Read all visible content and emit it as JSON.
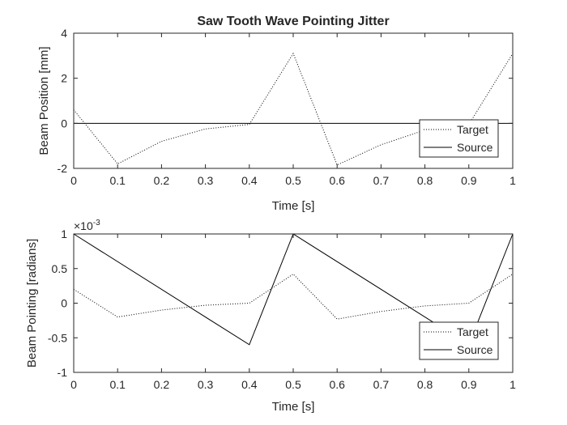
{
  "chart_data": [
    {
      "type": "line",
      "title": "Saw Tooth Wave Pointing Jitter",
      "xlabel": "Time [s]",
      "ylabel": "Beam Position [mm]",
      "xlim": [
        0,
        1
      ],
      "ylim": [
        -2,
        4
      ],
      "xticks": [
        0,
        0.1,
        0.2,
        0.3,
        0.4,
        0.5,
        0.6,
        0.7,
        0.8,
        0.9,
        1
      ],
      "xtick_labels": [
        "0",
        "0.1",
        "0.2",
        "0.3",
        "0.4",
        "0.5",
        "0.6",
        "0.7",
        "0.8",
        "0.9",
        "1"
      ],
      "yticks": [
        -2,
        0,
        2,
        4
      ],
      "ytick_labels": [
        "-2",
        "0",
        "2",
        "4"
      ],
      "legend_position": "bottom-right",
      "series": [
        {
          "name": "Target",
          "style": "dotted",
          "color": "#000000",
          "x": [
            0,
            0.1,
            0.2,
            0.3,
            0.4,
            0.5,
            0.6,
            0.7,
            0.8,
            0.9,
            1.0
          ],
          "y": [
            0.6,
            -1.8,
            -0.8,
            -0.25,
            -0.05,
            3.1,
            -1.85,
            -0.95,
            -0.3,
            -0.05,
            3.1
          ]
        },
        {
          "name": "Source",
          "style": "solid",
          "color": "#000000",
          "x": [
            0,
            1
          ],
          "y": [
            0,
            0
          ]
        }
      ]
    },
    {
      "type": "line",
      "title": "",
      "xlabel": "Time [s]",
      "ylabel": "Beam Pointing [radians]",
      "exponent_label": "×10",
      "exponent_power": "-3",
      "xlim": [
        0,
        1
      ],
      "ylim": [
        -1,
        1
      ],
      "xticks": [
        0,
        0.1,
        0.2,
        0.3,
        0.4,
        0.5,
        0.6,
        0.7,
        0.8,
        0.9,
        1
      ],
      "xtick_labels": [
        "0",
        "0.1",
        "0.2",
        "0.3",
        "0.4",
        "0.5",
        "0.6",
        "0.7",
        "0.8",
        "0.9",
        "1"
      ],
      "yticks": [
        -1,
        -0.5,
        0,
        0.5,
        1
      ],
      "ytick_labels": [
        "-1",
        "-0.5",
        "0",
        "0.5",
        "1"
      ],
      "legend_position": "bottom-right",
      "series": [
        {
          "name": "Target",
          "style": "dotted",
          "color": "#000000",
          "x": [
            0,
            0.1,
            0.2,
            0.3,
            0.4,
            0.5,
            0.6,
            0.7,
            0.8,
            0.9,
            1.0
          ],
          "y": [
            0.2,
            -0.2,
            -0.1,
            -0.03,
            0,
            0.42,
            -0.23,
            -0.12,
            -0.04,
            0,
            0.42
          ]
        },
        {
          "name": "Source",
          "style": "solid",
          "color": "#000000",
          "x": [
            0,
            0.4,
            0.5,
            0.9,
            1.0
          ],
          "y": [
            1.0,
            -0.6,
            1.0,
            -0.6,
            1.0
          ]
        }
      ]
    }
  ]
}
